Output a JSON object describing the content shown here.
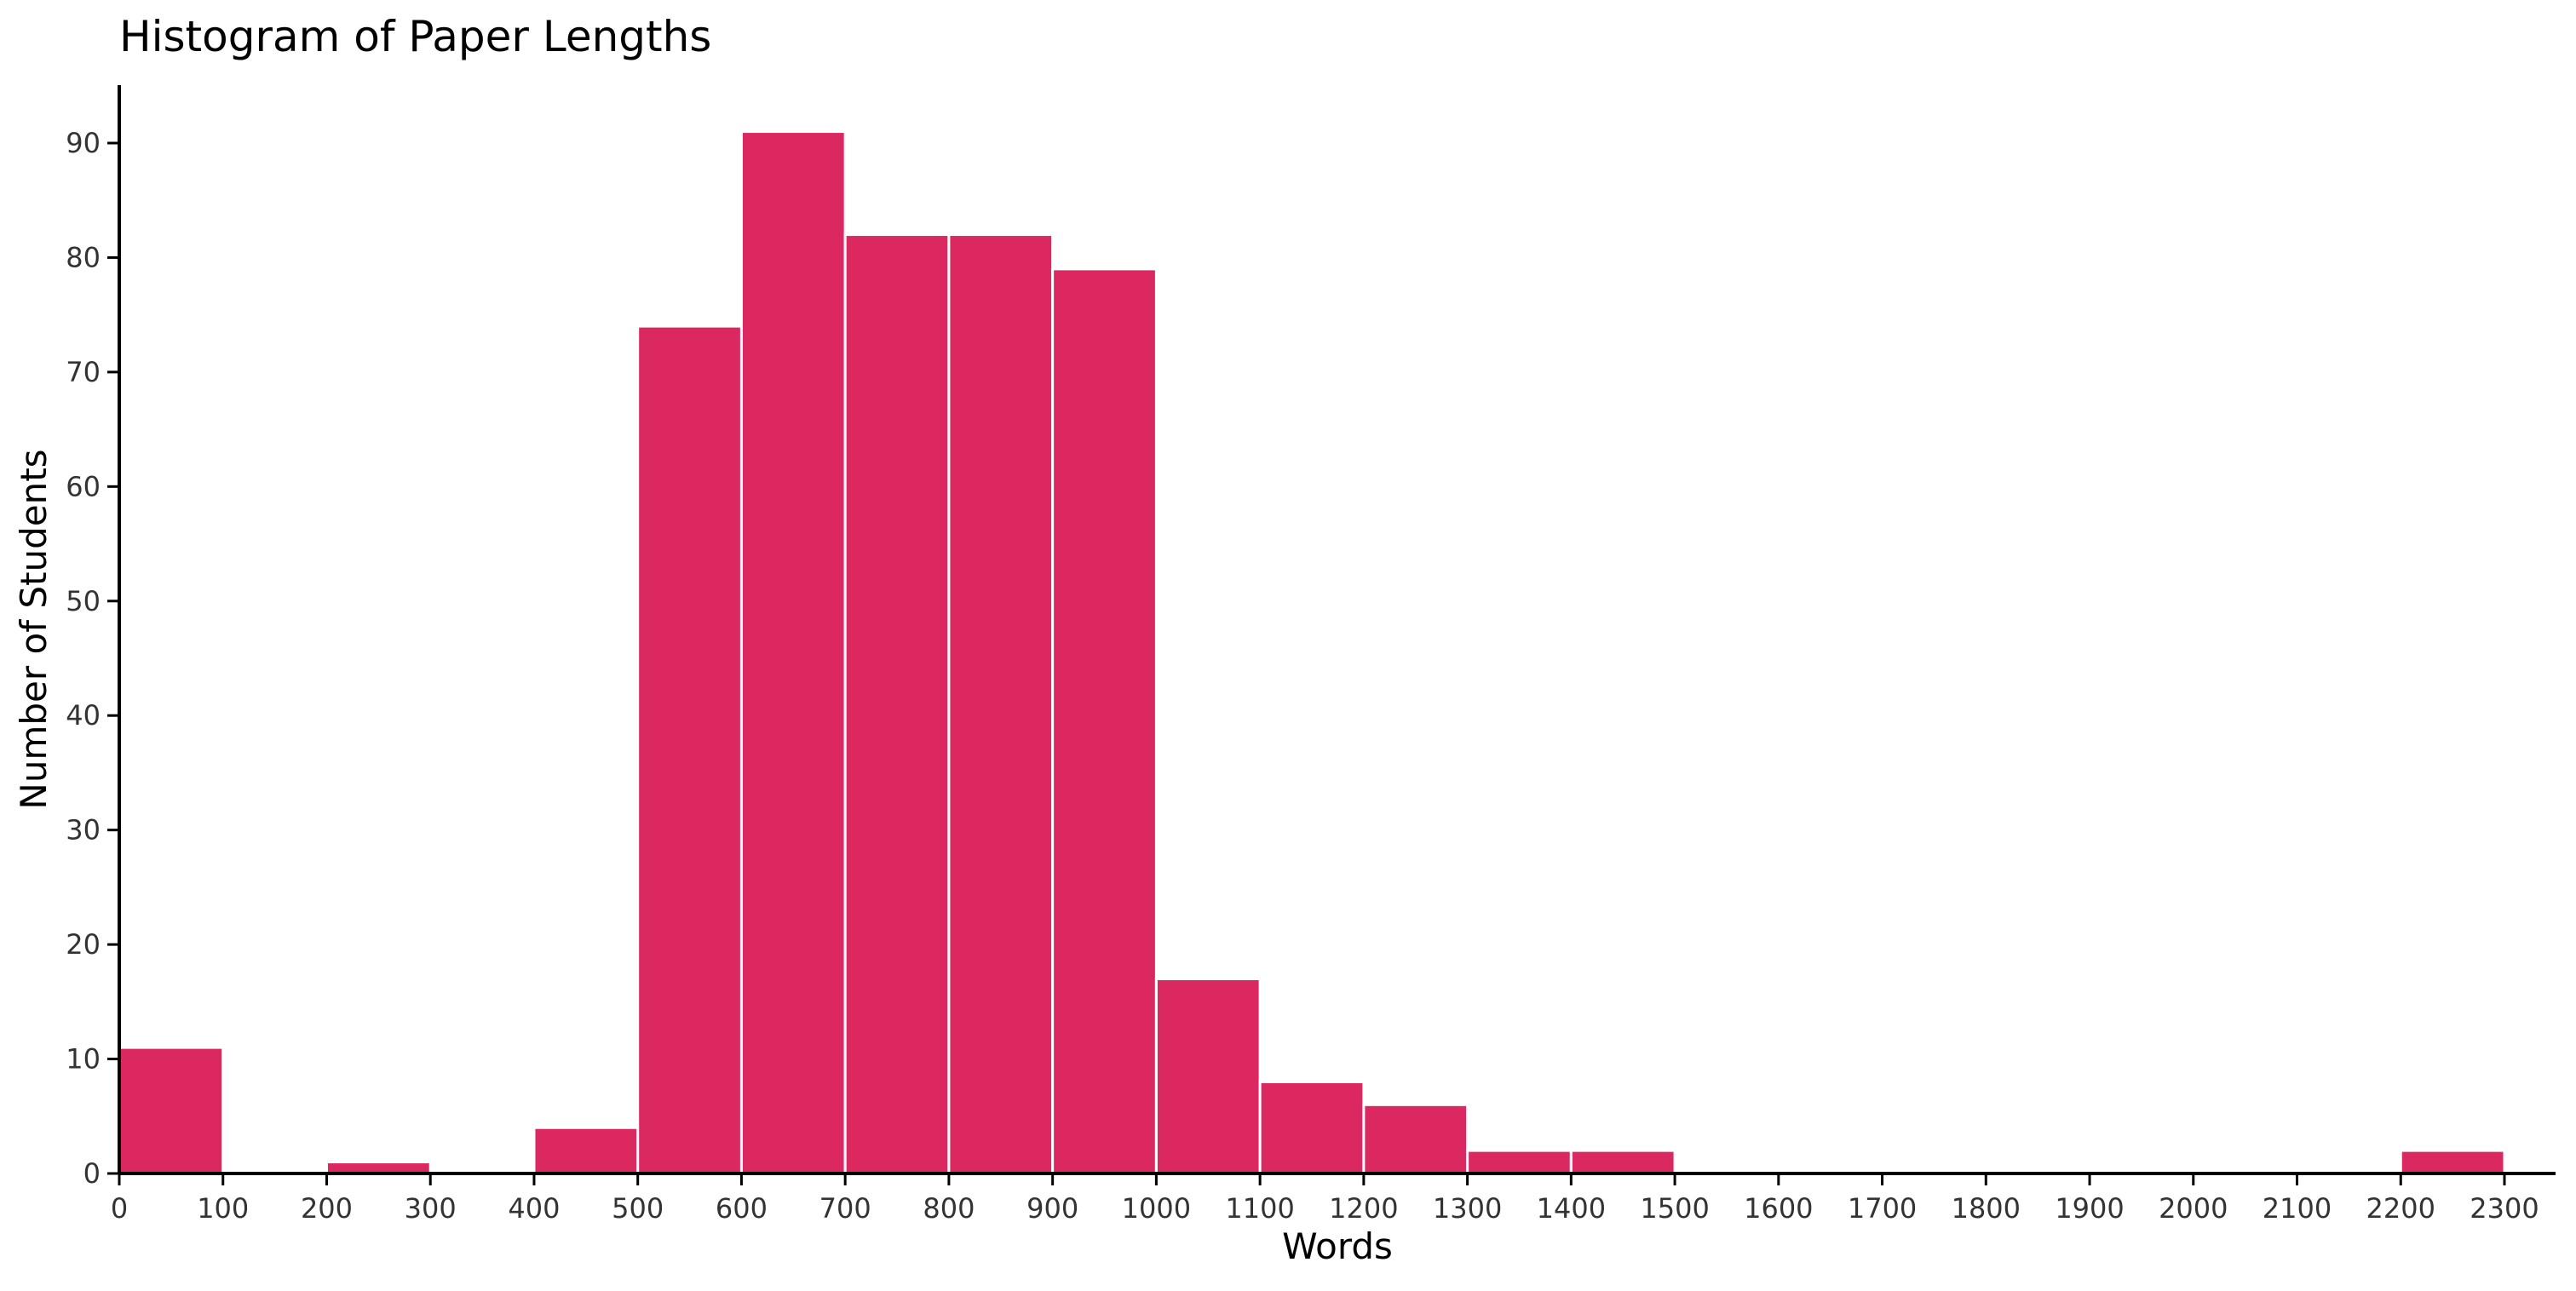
{
  "chart_data": {
    "type": "bar",
    "title": "Histogram of Paper Lengths",
    "xlabel": "Words",
    "ylabel": "Number of Students",
    "bin_width": 100,
    "bins": [
      {
        "start": 0,
        "count": 11
      },
      {
        "start": 100,
        "count": 0
      },
      {
        "start": 200,
        "count": 1
      },
      {
        "start": 300,
        "count": 0
      },
      {
        "start": 400,
        "count": 4
      },
      {
        "start": 500,
        "count": 74
      },
      {
        "start": 600,
        "count": 91
      },
      {
        "start": 700,
        "count": 82
      },
      {
        "start": 800,
        "count": 82
      },
      {
        "start": 900,
        "count": 79
      },
      {
        "start": 1000,
        "count": 17
      },
      {
        "start": 1100,
        "count": 8
      },
      {
        "start": 1200,
        "count": 6
      },
      {
        "start": 1300,
        "count": 2
      },
      {
        "start": 1400,
        "count": 2
      },
      {
        "start": 1500,
        "count": 0
      },
      {
        "start": 1600,
        "count": 0
      },
      {
        "start": 1700,
        "count": 0
      },
      {
        "start": 1800,
        "count": 0
      },
      {
        "start": 1900,
        "count": 0
      },
      {
        "start": 2000,
        "count": 0
      },
      {
        "start": 2100,
        "count": 0
      },
      {
        "start": 2200,
        "count": 2
      }
    ],
    "xlim": [
      0,
      2350
    ],
    "ylim": [
      0,
      95
    ],
    "xticks": [
      0,
      100,
      200,
      300,
      400,
      500,
      600,
      700,
      800,
      900,
      1000,
      1100,
      1200,
      1300,
      1400,
      1500,
      1600,
      1700,
      1800,
      1900,
      2000,
      2100,
      2200,
      2300
    ],
    "yticks": [
      0,
      10,
      20,
      30,
      40,
      50,
      60,
      70,
      80,
      90
    ],
    "grid": false,
    "legend": "none",
    "colors": {
      "bar_fill": "#dc2860",
      "bar_edge": "#ffffff",
      "axis": "#000000"
    }
  }
}
